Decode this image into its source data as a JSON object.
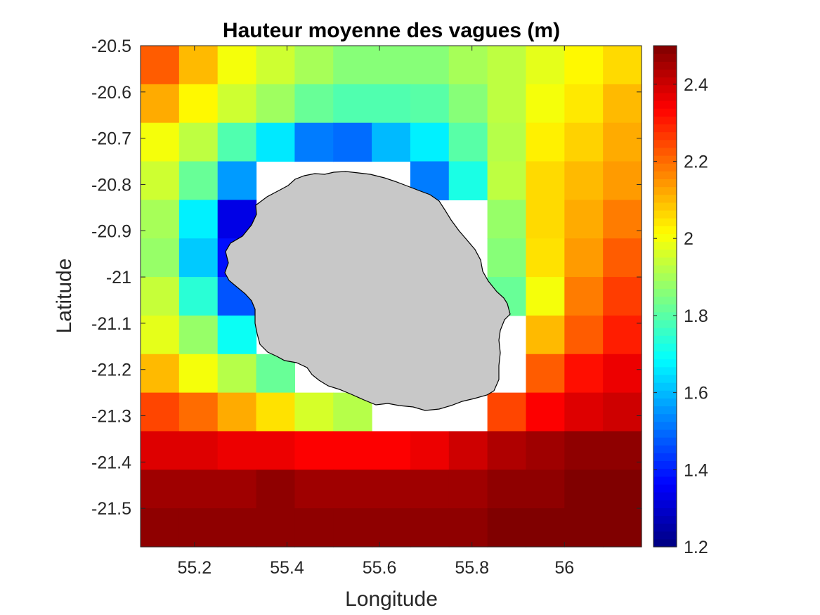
{
  "chart_data": {
    "type": "heatmap",
    "title": "Hauteur moyenne des vagues (m)",
    "xlabel": "Longitude",
    "ylabel": "Latitude",
    "x_ticks": [
      "55.2",
      "55.4",
      "55.6",
      "55.8",
      "56"
    ],
    "y_ticks": [
      "-20.5",
      "-20.6",
      "-20.7",
      "-20.8",
      "-20.9",
      "-21",
      "-21.1",
      "-21.2",
      "-21.3",
      "-21.4",
      "-21.5"
    ],
    "x_tick_values": [
      55.2,
      55.4,
      55.6,
      55.8,
      56.0
    ],
    "y_tick_values": [
      -20.5,
      -20.6,
      -20.7,
      -20.8,
      -20.9,
      -21.0,
      -21.1,
      -21.2,
      -21.3,
      -21.4,
      -21.5
    ],
    "xlim": [
      55.083,
      55.167
    ],
    "xlim_note": "",
    "xrange": [
      55.0833,
      56.1667
    ],
    "yrange": [
      -21.5833,
      -20.5
    ],
    "colorbar": {
      "min": 1.2,
      "max": 2.5,
      "ticks": [
        "1.2",
        "1.4",
        "1.6",
        "1.8",
        "2",
        "2.2",
        "2.4"
      ],
      "tick_values": [
        1.2,
        1.4,
        1.6,
        1.8,
        2.0,
        2.2,
        2.4
      ],
      "colormap": "jet"
    },
    "grid": {
      "lon_centers": [
        55.125,
        55.2083,
        55.2917,
        55.375,
        55.4583,
        55.5417,
        55.625,
        55.7083,
        55.7917,
        55.875,
        55.9583,
        56.0417,
        56.125
      ],
      "lat_centers": [
        -20.5417,
        -20.625,
        -20.7083,
        -20.7917,
        -20.875,
        -20.9583,
        -21.0417,
        -21.125,
        -21.2083,
        -21.2917,
        -21.375,
        -21.4583,
        -21.5417
      ],
      "values": [
        [
          2.22,
          2.1,
          2.0,
          1.95,
          1.9,
          1.86,
          1.86,
          1.86,
          1.9,
          1.93,
          1.98,
          2.02,
          2.06
        ],
        [
          2.12,
          2.02,
          1.95,
          1.89,
          1.82,
          1.79,
          1.79,
          1.8,
          1.86,
          1.93,
          2.0,
          2.04,
          2.1
        ],
        [
          2.0,
          1.93,
          1.79,
          1.66,
          1.52,
          1.5,
          1.6,
          1.67,
          1.8,
          1.92,
          2.03,
          2.07,
          2.12
        ],
        [
          1.95,
          1.82,
          1.56,
          null,
          null,
          null,
          null,
          1.52,
          1.72,
          1.93,
          2.06,
          2.1,
          2.14
        ],
        [
          1.9,
          1.67,
          1.33,
          null,
          null,
          null,
          null,
          null,
          null,
          1.88,
          2.06,
          2.12,
          2.18
        ],
        [
          1.88,
          1.62,
          1.38,
          null,
          null,
          null,
          null,
          null,
          null,
          1.86,
          2.05,
          2.14,
          2.22
        ],
        [
          1.94,
          1.74,
          1.47,
          null,
          null,
          null,
          null,
          null,
          null,
          1.82,
          2.0,
          2.18,
          2.26
        ],
        [
          1.98,
          1.88,
          1.7,
          null,
          null,
          null,
          null,
          null,
          null,
          null,
          2.1,
          2.22,
          2.3
        ],
        [
          2.1,
          2.0,
          1.92,
          1.82,
          null,
          null,
          null,
          null,
          null,
          null,
          2.22,
          2.32,
          2.36
        ],
        [
          2.25,
          2.2,
          2.12,
          2.05,
          1.96,
          1.92,
          null,
          null,
          null,
          2.25,
          2.34,
          2.38,
          2.4
        ],
        [
          2.38,
          2.38,
          2.36,
          2.36,
          2.34,
          2.34,
          2.34,
          2.36,
          2.4,
          2.44,
          2.46,
          2.48,
          2.48
        ],
        [
          2.46,
          2.46,
          2.46,
          2.48,
          2.46,
          2.46,
          2.46,
          2.46,
          2.46,
          2.48,
          2.48,
          2.5,
          2.5
        ],
        [
          2.48,
          2.48,
          2.48,
          2.48,
          2.48,
          2.48,
          2.48,
          2.48,
          2.48,
          2.5,
          2.5,
          2.5,
          2.5
        ]
      ]
    },
    "land_mask": {
      "name": "Réunion",
      "fill": "#c8c8c8",
      "stroke": "#000000"
    }
  }
}
